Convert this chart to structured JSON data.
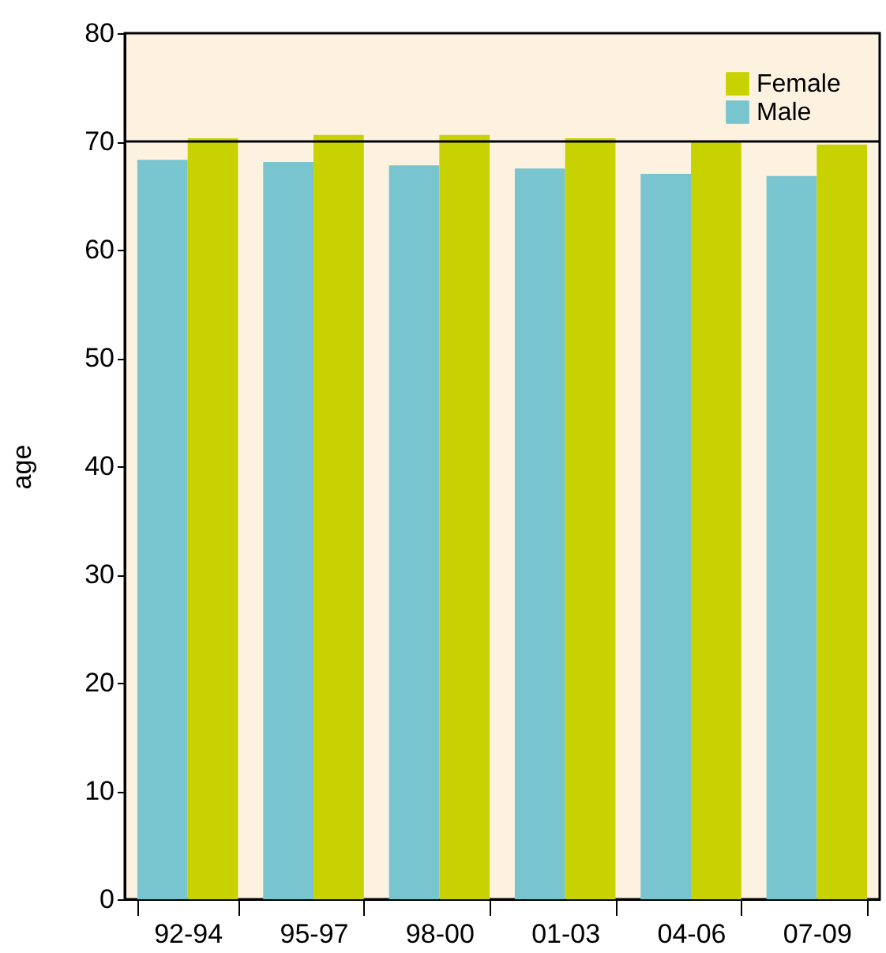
{
  "chart_data": {
    "type": "bar",
    "ylabel": "age",
    "categories": [
      "92-94",
      "95-97",
      "98-00",
      "01-03",
      "04-06",
      "07-09"
    ],
    "series": [
      {
        "name": "Male",
        "color": "#78c5cf",
        "values": [
          68.3,
          68.1,
          67.8,
          67.5,
          67.0,
          66.8
        ]
      },
      {
        "name": "Female",
        "color": "#c8d200",
        "values": [
          70.3,
          70.6,
          70.6,
          70.3,
          70.0,
          69.7
        ]
      }
    ],
    "ylim": [
      0,
      80
    ],
    "yticks": [
      0,
      10,
      20,
      30,
      40,
      50,
      60,
      70,
      80
    ],
    "grid": false,
    "legend": "top right",
    "ref_lines": [
      {
        "axis": "y",
        "value": 70,
        "color": "#000000"
      }
    ]
  }
}
